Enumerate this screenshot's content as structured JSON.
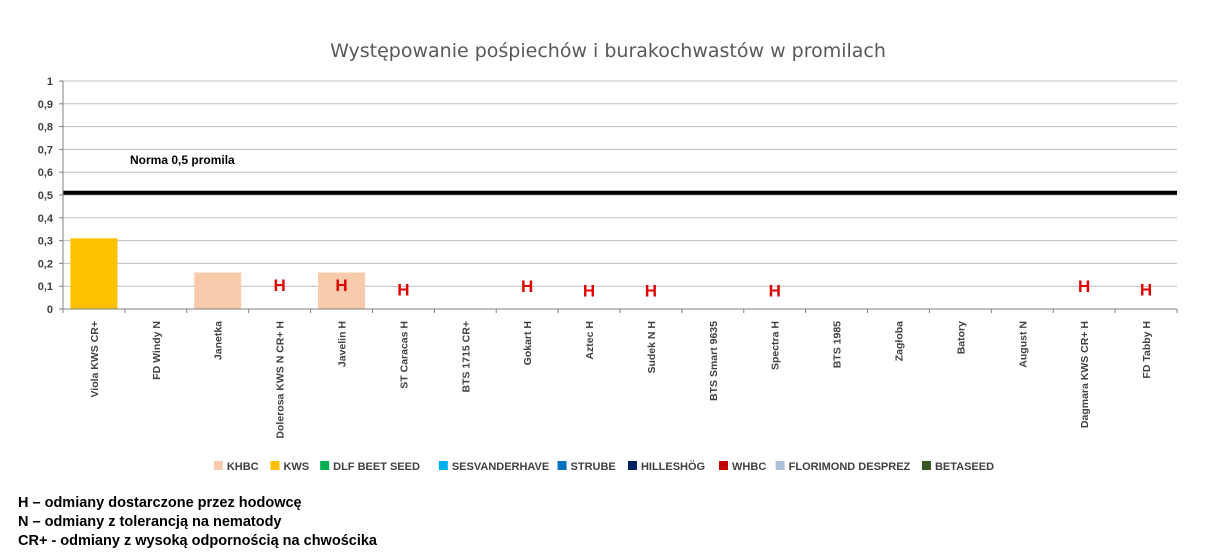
{
  "chart_data": {
    "type": "bar",
    "title": "Występowanie pośpiechów i burakochwastów w promilach",
    "ylim": [
      0,
      1
    ],
    "yticks": [
      "0",
      "0,1",
      "0,2",
      "0,3",
      "0,4",
      "0,5",
      "0,6",
      "0,7",
      "0,8",
      "0,9",
      "1"
    ],
    "grid": true,
    "categories": [
      "Viola KWS CR+",
      "FD Windy N",
      "Janetka",
      "Dolerosa KWS N CR+ H",
      "Javelin H",
      "ST Caracas  H",
      "BTS 1715 CR+",
      "Gokart  H",
      "Aztec  H",
      "Sudek N H",
      "BTS Smart 9635",
      "Spectra  H",
      "BTS 1985",
      "Zagłoba",
      "Batory",
      "August N",
      "Dagmara KWS CR+ H",
      "FD Tabby  H"
    ],
    "values": [
      0.31,
      0,
      0.16,
      0,
      0.16,
      0,
      0,
      0,
      0,
      0,
      0,
      0,
      0,
      0,
      0,
      0,
      0,
      0
    ],
    "bar_colors": [
      "#ffc000",
      null,
      "#f8cbad",
      null,
      "#f8cbad",
      null,
      null,
      null,
      null,
      null,
      null,
      null,
      null,
      null,
      null,
      null,
      null,
      null
    ],
    "h_markers": [
      {
        "category": "Dolerosa KWS N CR+ H",
        "text": "H",
        "y": 0.11
      },
      {
        "category": "Javelin H",
        "text": "H",
        "y": 0.11
      },
      {
        "category": "ST Caracas  H",
        "text": "H",
        "y": 0.09
      },
      {
        "category": "Gokart  H",
        "text": "H",
        "y": 0.105
      },
      {
        "category": "Aztec  H",
        "text": "H",
        "y": 0.085
      },
      {
        "category": "Sudek N H",
        "text": "H",
        "y": 0.085
      },
      {
        "category": "Spectra  H",
        "text": "H",
        "y": 0.085
      },
      {
        "category": "Dagmara KWS CR+ H",
        "text": "H",
        "y": 0.105
      },
      {
        "category": "FD Tabby  H",
        "text": "H",
        "y": 0.09
      }
    ],
    "norm_line": {
      "value": 0.51,
      "label": "Norma 0,5 promila"
    },
    "legend_position": "bottom",
    "legend": [
      {
        "name": "KHBC",
        "color": "#f8cbad"
      },
      {
        "name": "KWS",
        "color": "#ffc000"
      },
      {
        "name": "DLF BEET SEED",
        "color": "#00b050"
      },
      {
        "name": "SESVANDERHAVE",
        "color": "#00b0f0"
      },
      {
        "name": "STRUBE",
        "color": "#0070c0"
      },
      {
        "name": "HILLESHÖG",
        "color": "#002060"
      },
      {
        "name": "WHBC",
        "color": "#c00000"
      },
      {
        "name": "FLORIMOND DESPREZ",
        "color": "#adc2da"
      },
      {
        "name": "BETASEED",
        "color": "#375623"
      }
    ]
  },
  "notes": [
    "H – odmiany dostarczone przez hodowcę",
    "N – odmiany z tolerancją na nematody",
    "CR+ - odmiany z wysoką odpornością na chwościka"
  ]
}
